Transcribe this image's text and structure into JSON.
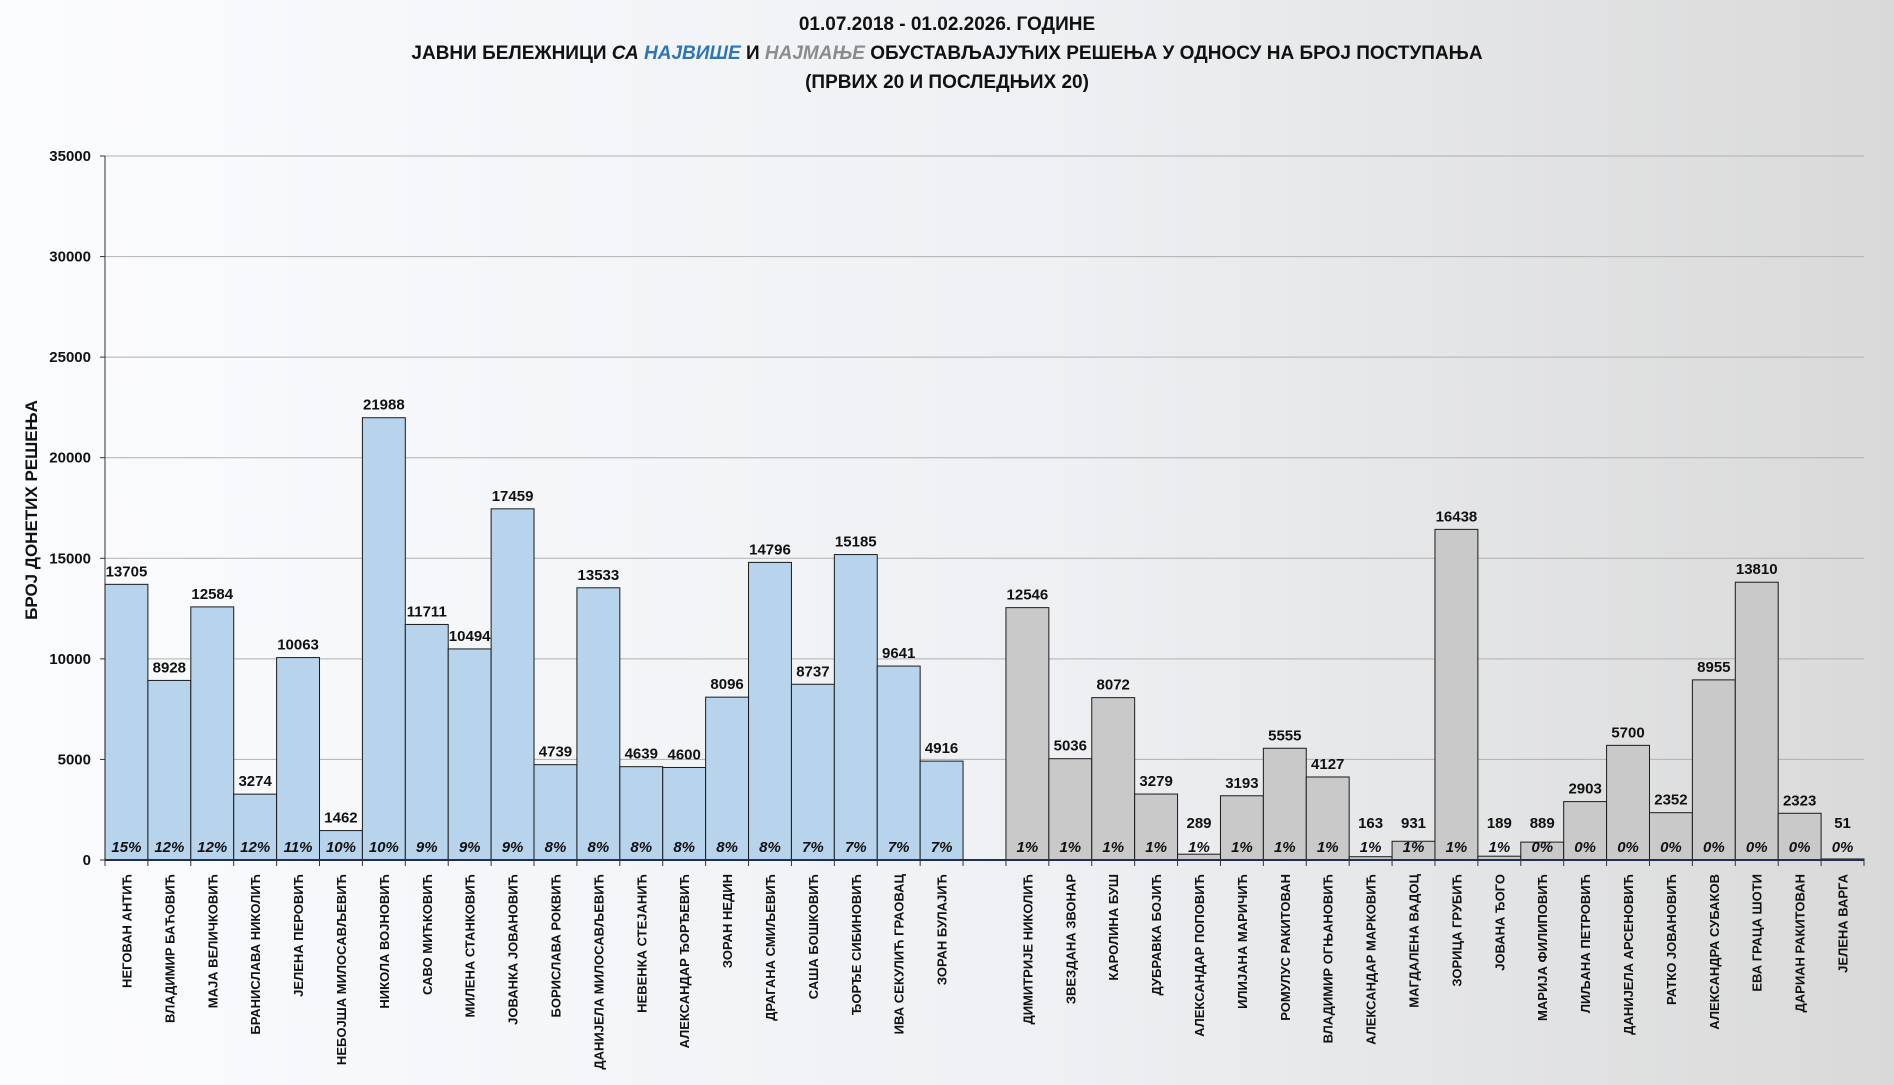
{
  "chart_data": {
    "type": "bar",
    "title_line1": "01.07.2018 - 01.02.2026. ГОДИНЕ",
    "title_line2": {
      "p1": "ЈАВНИ БЕЛЕЖНИЦИ ",
      "p2": "СА ",
      "p3": "НАЈВИШЕ",
      "p4": " И ",
      "p5": "НАЈМАЊЕ",
      "p6": " ОБУСТАВЉАЈУЋИХ РЕШЕЊА У ОДНОСУ НА БРОЈ ПОСТУПАЊА"
    },
    "title_line3": "(ПРВИХ 20 И ПОСЛЕДЊИХ 20)",
    "ylabel": "БРОЈ ДОНЕТИХ РЕШЕЊА",
    "xlabel": "",
    "ylim": [
      0,
      35000
    ],
    "yticks": [
      0,
      5000,
      10000,
      15000,
      20000,
      25000,
      30000,
      35000
    ],
    "grid": true,
    "colors": {
      "top": "#b8d3ec",
      "bottom": "#c9c9c9",
      "outline": "#1a1a1a",
      "highlight_most": "#2e75b6",
      "highlight_least": "#8c8c8c"
    },
    "series": [
      {
        "group": "top",
        "categories": [
          "НЕГОВАН АНТИЋ",
          "ВЛАДИМИР БАЋОВИЋ",
          "МАЈА ВЕЛИЧКОВИЋ",
          "БРАНИСЛАВА НИКОЛИЋ",
          "ЈЕЛЕНА ПЕРОВИЋ",
          "НЕБОЈША МИЛОСАВЉЕВИЋ",
          "НИКОЛА ВОЈНОВИЋ",
          "САВО МИЋКОВИЋ",
          "МИЛЕНА СТАНКОВИЋ",
          "ЈОВАНКА ЈОВАНОВИЋ",
          "БОРИСЛАВА РОКВИЋ",
          "ДАНИЈЕЛА МИЛОСАВЉЕВИЋ",
          "НЕВЕНКА СТЕЈАНИЋ",
          "АЛЕКСАНДАР ЂОРЂЕВИЋ",
          "ЗОРАН НЕДИН",
          "ДРАГАНА СМИЉЕВИЋ",
          "САША БОШКОВИЋ",
          "ЂОРЂЕ СИБИНОВИЋ",
          "ИВА СЕКУЛИЋ ГРАОВАЦ",
          "ЗОРАН БУЛАЈИЋ"
        ],
        "values": [
          13705,
          8928,
          12584,
          3274,
          10063,
          1462,
          21988,
          11711,
          10494,
          17459,
          4739,
          13533,
          4639,
          4600,
          8096,
          14796,
          8737,
          15185,
          9641,
          4916
        ],
        "percent_labels": [
          "15%",
          "12%",
          "12%",
          "12%",
          "11%",
          "10%",
          "10%",
          "9%",
          "9%",
          "9%",
          "8%",
          "8%",
          "8%",
          "8%",
          "8%",
          "8%",
          "7%",
          "7%",
          "7%",
          "7%"
        ]
      },
      {
        "group": "bottom",
        "categories": [
          "ДИМИТРИЈЕ НИКОЛИЋ",
          "ЗВЕЗДАНА ЗВОНАР",
          "КАРОЛИНА БУШ",
          "ДУБРАВКА БОЈИЋ",
          "АЛЕКСАНДАР ПОПОВИЋ",
          "ИЛИЈАНА МАРИЧИЋ",
          "РОМУЛУС РАКИТОВАН",
          "ВЛАДИМИР ОГЊАНОВИЋ",
          "АЛЕКСАНДАР МАРКОВИЋ",
          "МАГДАЛЕНА ВАДОЦ",
          "ЗОРИЦА ГРУБИЋ",
          "ЈОВАНА ЂОГО",
          "МАРИЈА ФИЛИПОВИЋ",
          "ЛИЉАНА ПЕТРОВИЋ",
          "ДАНИЈЕЛА АРСЕНОВИЋ",
          "РАТКО ЈОВАНОВИЋ",
          "АЛЕКСАНДРА СУБАКОВ",
          "ЕВА ГРАЦА ШОТИ",
          "ДАРИАН РАКИТОВАН",
          "ЈЕЛЕНА ВАРГА"
        ],
        "values": [
          12546,
          5036,
          8072,
          3279,
          289,
          3193,
          5555,
          4127,
          163,
          931,
          16438,
          189,
          889,
          2903,
          5700,
          2352,
          8955,
          13810,
          2323,
          51
        ],
        "percent_labels": [
          "1%",
          "1%",
          "1%",
          "1%",
          "1%",
          "1%",
          "1%",
          "1%",
          "1%",
          "1%",
          "1%",
          "1%",
          "0%",
          "0%",
          "0%",
          "0%",
          "0%",
          "0%",
          "0%",
          "0%"
        ]
      }
    ]
  }
}
